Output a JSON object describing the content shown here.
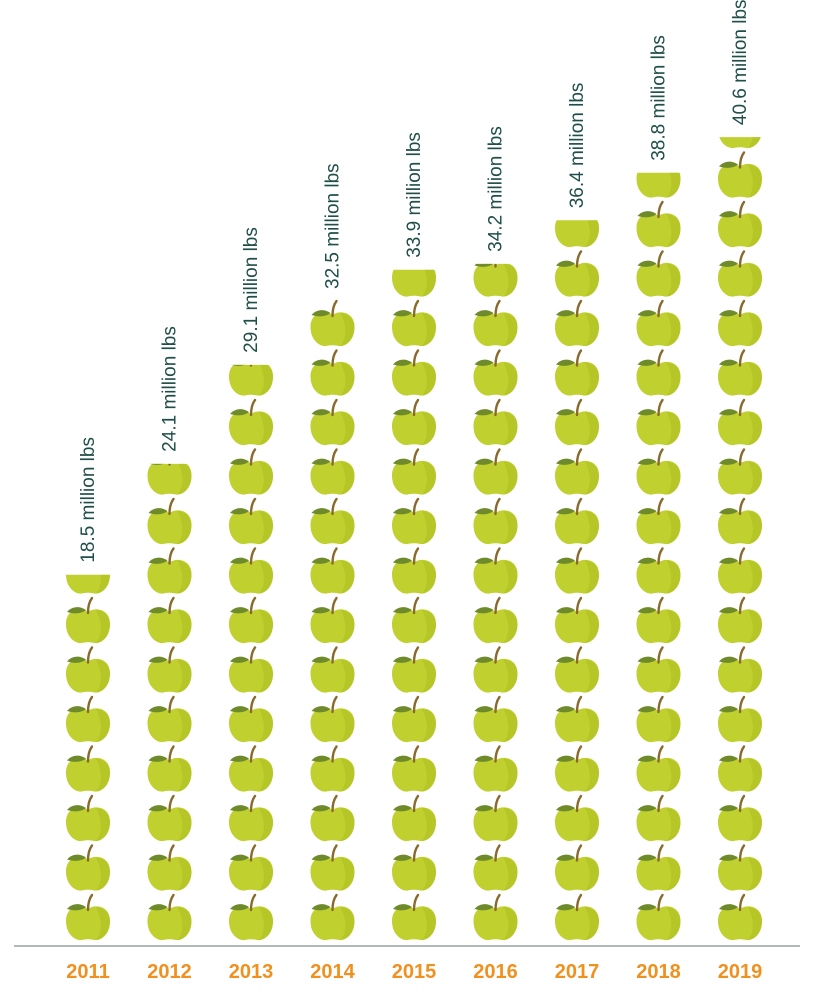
{
  "chart_data": {
    "type": "bar",
    "categories": [
      "2011",
      "2012",
      "2013",
      "2014",
      "2015",
      "2016",
      "2017",
      "2018",
      "2019"
    ],
    "values": [
      18.5,
      24.1,
      29.1,
      32.5,
      33.9,
      34.2,
      36.4,
      38.8,
      40.6
    ],
    "value_labels": [
      "18.5 million lbs",
      "24.1 million lbs",
      "29.1 million lbs",
      "32.5 million lbs",
      "33.9 million lbs",
      "34.2 million lbs",
      "36.4 million lbs",
      "38.8 million lbs",
      "40.6 million lbs"
    ],
    "unit_per_apple": 2.5,
    "title": "",
    "xlabel": "",
    "ylabel": "",
    "grid": false,
    "legend": "none",
    "colors": {
      "apple": "#c0d02e",
      "apple_shade": "#adbd22",
      "stem": "#8a6a2c",
      "leaf": "#6e8a2a",
      "value_text": "#1f4f48",
      "year_text": "#f0901e",
      "baseline": "#9aa0a0"
    },
    "icons": {
      "mark": "apple-icon"
    }
  }
}
